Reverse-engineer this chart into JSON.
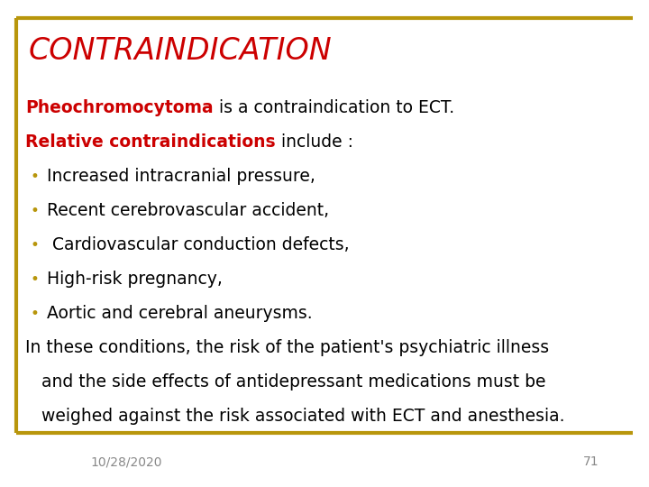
{
  "title": "CONTRAINDICATION",
  "title_color": "#CC0000",
  "title_fontsize": 24,
  "title_fontstyle": "italic",
  "bg_color": "#FFFFFF",
  "border_color": "#B8960C",
  "footer_date": "10/28/2020",
  "footer_page": "71",
  "footer_fontsize": 10,
  "footer_color": "#888888",
  "body_fontsize": 13.5,
  "body_color": "#000000",
  "red_color": "#CC0000",
  "bullet_color": "#B8960C",
  "line1_bold": "Pheochromocytoma",
  "line1_rest": " is a contraindication to ECT.",
  "line2_bold": "Relative contraindications",
  "line2_rest": " include :",
  "bullets": [
    "Increased intracranial pressure,",
    "Recent cerebrovascular accident,",
    " Cardiovascular conduction defects,",
    "High-risk pregnancy,",
    "Aortic and cerebral aneurysms."
  ],
  "para_line1": "In these conditions, the risk of the patient's psychiatric illness",
  "para_line2": "   and the side effects of antidepressant medications must be",
  "para_line3": "   weighed against the risk associated with ECT and anesthesia."
}
